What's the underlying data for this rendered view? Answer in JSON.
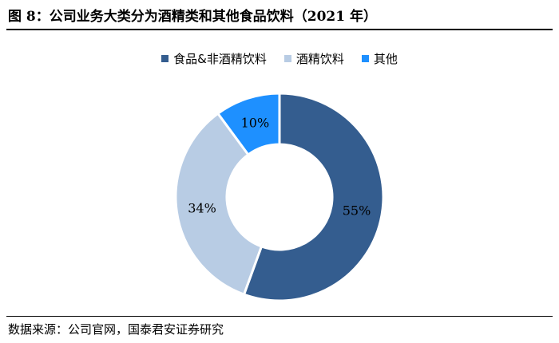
{
  "figure": {
    "title": "图 8：公司业务大类分为酒精类和其他食品饮料（2021 年）",
    "source": "数据来源：公司官网，国泰君安证券研究"
  },
  "chart_data": {
    "type": "pie",
    "donut": true,
    "title": "图 8：公司业务大类分为酒精类和其他食品饮料（2021 年）",
    "legend_position": "top",
    "categories": [
      "食品&非酒精饮料",
      "酒精饮料",
      "其他"
    ],
    "values": [
      55,
      34,
      10
    ],
    "labels": [
      "55%",
      "34%",
      "10%"
    ],
    "colors": [
      "#345d8f",
      "#b8cce4",
      "#1e90ff"
    ],
    "unit": "%"
  }
}
